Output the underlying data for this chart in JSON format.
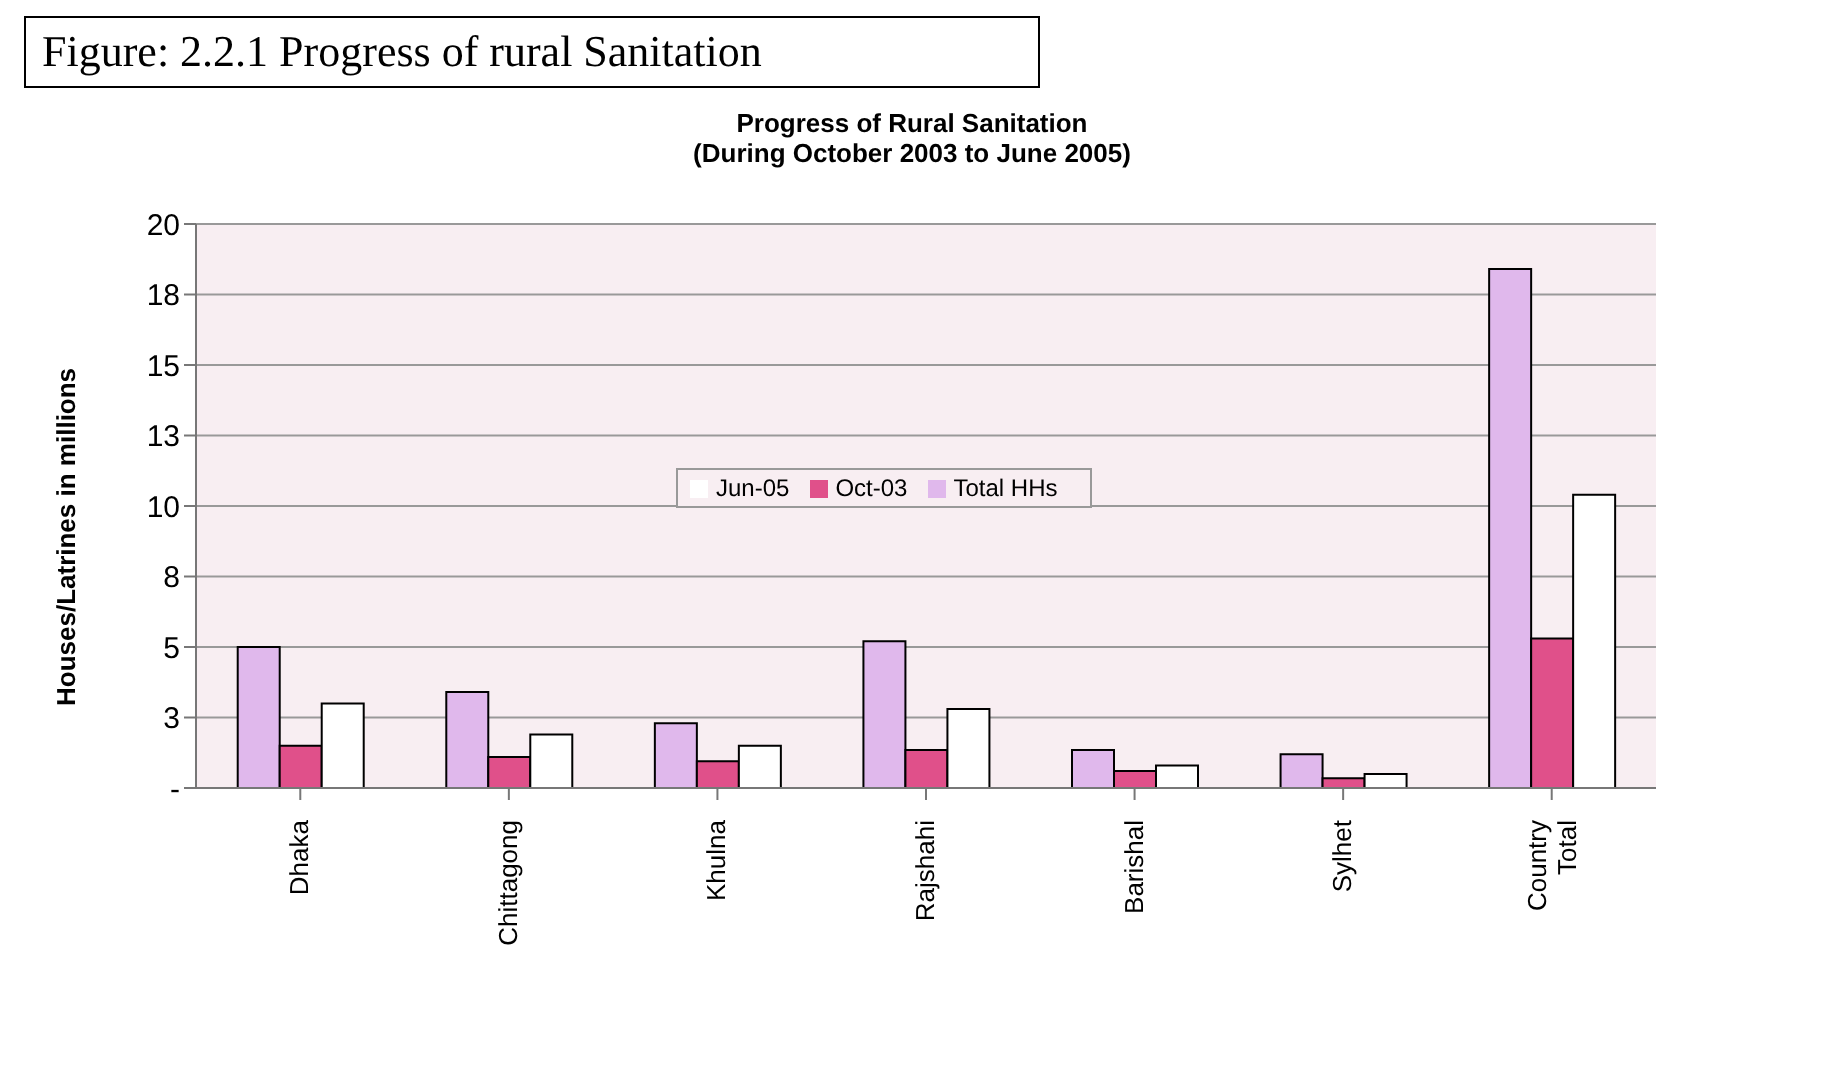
{
  "chart_data": {
    "type": "bar",
    "title": "Progress of Rural Sanitation",
    "subtitle": "(During October 2003 to June 2005)",
    "ylabel": "Houses/Latrines in millions",
    "annotations": [
      "Figure: 2.2.1 Progress of rural Sanitation"
    ],
    "categories": [
      "Dhaka",
      "Chittagong",
      "Khulna",
      "Rajshahi",
      "Barishal",
      "Sylhet",
      "Country Total"
    ],
    "series": [
      {
        "name": "Total HHs",
        "color": "#e0b8ec",
        "values": [
          5.0,
          3.4,
          2.3,
          5.2,
          1.35,
          1.2,
          18.4
        ]
      },
      {
        "name": "Oct-03",
        "color": "#e0508a",
        "values": [
          1.5,
          1.1,
          0.95,
          1.35,
          0.6,
          0.35,
          5.3
        ]
      },
      {
        "name": "Jun-05",
        "color": "#ffffff",
        "values": [
          3.0,
          1.9,
          1.5,
          2.8,
          0.8,
          0.5,
          10.4
        ]
      }
    ],
    "ylim": [
      0,
      20
    ],
    "yticks": [
      {
        "value": 0,
        "label": "-"
      },
      {
        "value": 2.5,
        "label": "3"
      },
      {
        "value": 5,
        "label": "5"
      },
      {
        "value": 7.5,
        "label": "8"
      },
      {
        "value": 10,
        "label": "10"
      },
      {
        "value": 12.5,
        "label": "13"
      },
      {
        "value": 15,
        "label": "15"
      },
      {
        "value": 17.5,
        "label": "18"
      },
      {
        "value": 20,
        "label": "20"
      }
    ],
    "grid": "y",
    "legend": "top"
  }
}
